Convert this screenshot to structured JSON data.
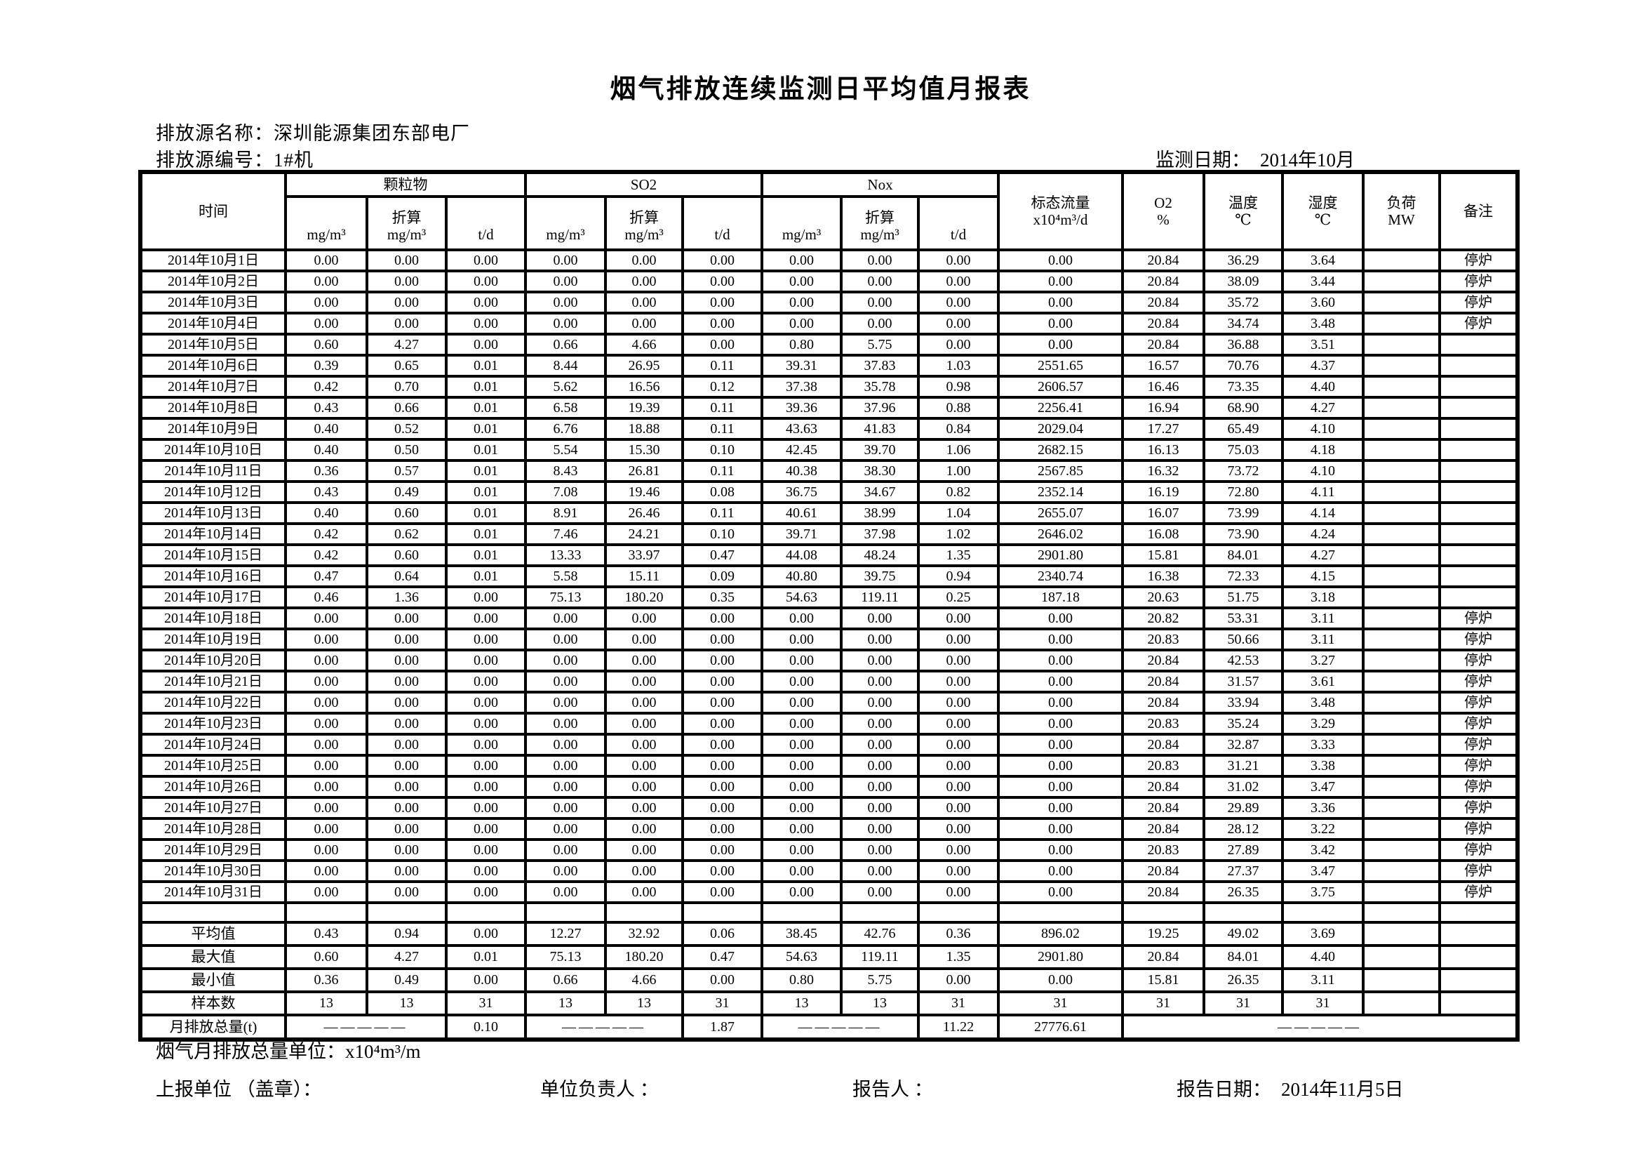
{
  "page": {
    "title": "烟气排放连续监测日平均值月报表",
    "source_name": "排放源名称：深圳能源集团东部电厂",
    "source_id": "排放源编号：1#机",
    "monitor_date_label": "监测日期：",
    "monitor_date_value": "2014年10月"
  },
  "table": {
    "headers": {
      "time": "时间",
      "groups": [
        {
          "label": "颗粒物",
          "units": [
            "mg/m³",
            "折算\nmg/m³",
            "t/d"
          ]
        },
        {
          "label": "SO2",
          "units": [
            "mg/m³",
            "折算\nmg/m³",
            "t/d"
          ]
        },
        {
          "label": "Nox",
          "units": [
            "mg/m³",
            "折算\nmg/m³",
            "t/d"
          ]
        }
      ],
      "flow": "标态流量\nx10⁴m³/d",
      "o2": "O2\n%",
      "temp": "温度\n℃",
      "humidity": "湿度\n℃",
      "load": "负荷\nMW",
      "remark": "备注"
    },
    "rows": [
      {
        "date": "2014年10月1日",
        "values": [
          "0.00",
          "0.00",
          "0.00",
          "0.00",
          "0.00",
          "0.00",
          "0.00",
          "0.00",
          "0.00",
          "0.00",
          "20.84",
          "36.29",
          "3.64"
        ],
        "load": "",
        "remark": "停炉"
      },
      {
        "date": "2014年10月2日",
        "values": [
          "0.00",
          "0.00",
          "0.00",
          "0.00",
          "0.00",
          "0.00",
          "0.00",
          "0.00",
          "0.00",
          "0.00",
          "20.84",
          "38.09",
          "3.44"
        ],
        "load": "",
        "remark": "停炉"
      },
      {
        "date": "2014年10月3日",
        "values": [
          "0.00",
          "0.00",
          "0.00",
          "0.00",
          "0.00",
          "0.00",
          "0.00",
          "0.00",
          "0.00",
          "0.00",
          "20.84",
          "35.72",
          "3.60"
        ],
        "load": "",
        "remark": "停炉"
      },
      {
        "date": "2014年10月4日",
        "values": [
          "0.00",
          "0.00",
          "0.00",
          "0.00",
          "0.00",
          "0.00",
          "0.00",
          "0.00",
          "0.00",
          "0.00",
          "20.84",
          "34.74",
          "3.48"
        ],
        "load": "",
        "remark": "停炉"
      },
      {
        "date": "2014年10月5日",
        "values": [
          "0.60",
          "4.27",
          "0.00",
          "0.66",
          "4.66",
          "0.00",
          "0.80",
          "5.75",
          "0.00",
          "0.00",
          "20.84",
          "36.88",
          "3.51"
        ],
        "load": "",
        "remark": ""
      },
      {
        "date": "2014年10月6日",
        "values": [
          "0.39",
          "0.65",
          "0.01",
          "8.44",
          "26.95",
          "0.11",
          "39.31",
          "37.83",
          "1.03",
          "2551.65",
          "16.57",
          "70.76",
          "4.37"
        ],
        "load": "",
        "remark": ""
      },
      {
        "date": "2014年10月7日",
        "values": [
          "0.42",
          "0.70",
          "0.01",
          "5.62",
          "16.56",
          "0.12",
          "37.38",
          "35.78",
          "0.98",
          "2606.57",
          "16.46",
          "73.35",
          "4.40"
        ],
        "load": "",
        "remark": ""
      },
      {
        "date": "2014年10月8日",
        "values": [
          "0.43",
          "0.66",
          "0.01",
          "6.58",
          "19.39",
          "0.11",
          "39.36",
          "37.96",
          "0.88",
          "2256.41",
          "16.94",
          "68.90",
          "4.27"
        ],
        "load": "",
        "remark": ""
      },
      {
        "date": "2014年10月9日",
        "values": [
          "0.40",
          "0.52",
          "0.01",
          "6.76",
          "18.88",
          "0.11",
          "43.63",
          "41.83",
          "0.84",
          "2029.04",
          "17.27",
          "65.49",
          "4.10"
        ],
        "load": "",
        "remark": ""
      },
      {
        "date": "2014年10月10日",
        "values": [
          "0.40",
          "0.50",
          "0.01",
          "5.54",
          "15.30",
          "0.10",
          "42.45",
          "39.70",
          "1.06",
          "2682.15",
          "16.13",
          "75.03",
          "4.18"
        ],
        "load": "",
        "remark": ""
      },
      {
        "date": "2014年10月11日",
        "values": [
          "0.36",
          "0.57",
          "0.01",
          "8.43",
          "26.81",
          "0.11",
          "40.38",
          "38.30",
          "1.00",
          "2567.85",
          "16.32",
          "73.72",
          "4.10"
        ],
        "load": "",
        "remark": ""
      },
      {
        "date": "2014年10月12日",
        "values": [
          "0.43",
          "0.49",
          "0.01",
          "7.08",
          "19.46",
          "0.08",
          "36.75",
          "34.67",
          "0.82",
          "2352.14",
          "16.19",
          "72.80",
          "4.11"
        ],
        "load": "",
        "remark": ""
      },
      {
        "date": "2014年10月13日",
        "values": [
          "0.40",
          "0.60",
          "0.01",
          "8.91",
          "26.46",
          "0.11",
          "40.61",
          "38.99",
          "1.04",
          "2655.07",
          "16.07",
          "73.99",
          "4.14"
        ],
        "load": "",
        "remark": ""
      },
      {
        "date": "2014年10月14日",
        "values": [
          "0.42",
          "0.62",
          "0.01",
          "7.46",
          "24.21",
          "0.10",
          "39.71",
          "37.98",
          "1.02",
          "2646.02",
          "16.08",
          "73.90",
          "4.24"
        ],
        "load": "",
        "remark": ""
      },
      {
        "date": "2014年10月15日",
        "values": [
          "0.42",
          "0.60",
          "0.01",
          "13.33",
          "33.97",
          "0.47",
          "44.08",
          "48.24",
          "1.35",
          "2901.80",
          "15.81",
          "84.01",
          "4.27"
        ],
        "load": "",
        "remark": ""
      },
      {
        "date": "2014年10月16日",
        "values": [
          "0.47",
          "0.64",
          "0.01",
          "5.58",
          "15.11",
          "0.09",
          "40.80",
          "39.75",
          "0.94",
          "2340.74",
          "16.38",
          "72.33",
          "4.15"
        ],
        "load": "",
        "remark": ""
      },
      {
        "date": "2014年10月17日",
        "values": [
          "0.46",
          "1.36",
          "0.00",
          "75.13",
          "180.20",
          "0.35",
          "54.63",
          "119.11",
          "0.25",
          "187.18",
          "20.63",
          "51.75",
          "3.18"
        ],
        "load": "",
        "remark": ""
      },
      {
        "date": "2014年10月18日",
        "values": [
          "0.00",
          "0.00",
          "0.00",
          "0.00",
          "0.00",
          "0.00",
          "0.00",
          "0.00",
          "0.00",
          "0.00",
          "20.82",
          "53.31",
          "3.11"
        ],
        "load": "",
        "remark": "停炉"
      },
      {
        "date": "2014年10月19日",
        "values": [
          "0.00",
          "0.00",
          "0.00",
          "0.00",
          "0.00",
          "0.00",
          "0.00",
          "0.00",
          "0.00",
          "0.00",
          "20.83",
          "50.66",
          "3.11"
        ],
        "load": "",
        "remark": "停炉"
      },
      {
        "date": "2014年10月20日",
        "values": [
          "0.00",
          "0.00",
          "0.00",
          "0.00",
          "0.00",
          "0.00",
          "0.00",
          "0.00",
          "0.00",
          "0.00",
          "20.84",
          "42.53",
          "3.27"
        ],
        "load": "",
        "remark": "停炉"
      },
      {
        "date": "2014年10月21日",
        "values": [
          "0.00",
          "0.00",
          "0.00",
          "0.00",
          "0.00",
          "0.00",
          "0.00",
          "0.00",
          "0.00",
          "0.00",
          "20.84",
          "31.57",
          "3.61"
        ],
        "load": "",
        "remark": "停炉"
      },
      {
        "date": "2014年10月22日",
        "values": [
          "0.00",
          "0.00",
          "0.00",
          "0.00",
          "0.00",
          "0.00",
          "0.00",
          "0.00",
          "0.00",
          "0.00",
          "20.84",
          "33.94",
          "3.48"
        ],
        "load": "",
        "remark": "停炉"
      },
      {
        "date": "2014年10月23日",
        "values": [
          "0.00",
          "0.00",
          "0.00",
          "0.00",
          "0.00",
          "0.00",
          "0.00",
          "0.00",
          "0.00",
          "0.00",
          "20.83",
          "35.24",
          "3.29"
        ],
        "load": "",
        "remark": "停炉"
      },
      {
        "date": "2014年10月24日",
        "values": [
          "0.00",
          "0.00",
          "0.00",
          "0.00",
          "0.00",
          "0.00",
          "0.00",
          "0.00",
          "0.00",
          "0.00",
          "20.84",
          "32.87",
          "3.33"
        ],
        "load": "",
        "remark": "停炉"
      },
      {
        "date": "2014年10月25日",
        "values": [
          "0.00",
          "0.00",
          "0.00",
          "0.00",
          "0.00",
          "0.00",
          "0.00",
          "0.00",
          "0.00",
          "0.00",
          "20.83",
          "31.21",
          "3.38"
        ],
        "load": "",
        "remark": "停炉"
      },
      {
        "date": "2014年10月26日",
        "values": [
          "0.00",
          "0.00",
          "0.00",
          "0.00",
          "0.00",
          "0.00",
          "0.00",
          "0.00",
          "0.00",
          "0.00",
          "20.84",
          "31.02",
          "3.47"
        ],
        "load": "",
        "remark": "停炉"
      },
      {
        "date": "2014年10月27日",
        "values": [
          "0.00",
          "0.00",
          "0.00",
          "0.00",
          "0.00",
          "0.00",
          "0.00",
          "0.00",
          "0.00",
          "0.00",
          "20.84",
          "29.89",
          "3.36"
        ],
        "load": "",
        "remark": "停炉"
      },
      {
        "date": "2014年10月28日",
        "values": [
          "0.00",
          "0.00",
          "0.00",
          "0.00",
          "0.00",
          "0.00",
          "0.00",
          "0.00",
          "0.00",
          "0.00",
          "20.84",
          "28.12",
          "3.22"
        ],
        "load": "",
        "remark": "停炉"
      },
      {
        "date": "2014年10月29日",
        "values": [
          "0.00",
          "0.00",
          "0.00",
          "0.00",
          "0.00",
          "0.00",
          "0.00",
          "0.00",
          "0.00",
          "0.00",
          "20.83",
          "27.89",
          "3.42"
        ],
        "load": "",
        "remark": "停炉"
      },
      {
        "date": "2014年10月30日",
        "values": [
          "0.00",
          "0.00",
          "0.00",
          "0.00",
          "0.00",
          "0.00",
          "0.00",
          "0.00",
          "0.00",
          "0.00",
          "20.84",
          "27.37",
          "3.47"
        ],
        "load": "",
        "remark": "停炉"
      },
      {
        "date": "2014年10月31日",
        "values": [
          "0.00",
          "0.00",
          "0.00",
          "0.00",
          "0.00",
          "0.00",
          "0.00",
          "0.00",
          "0.00",
          "0.00",
          "20.84",
          "26.35",
          "3.75"
        ],
        "load": "",
        "remark": "停炉"
      }
    ],
    "summary": [
      {
        "label": "平均值",
        "values": [
          "0.43",
          "0.94",
          "0.00",
          "12.27",
          "32.92",
          "0.06",
          "38.45",
          "42.76",
          "0.36",
          "896.02",
          "19.25",
          "49.02",
          "3.69"
        ],
        "load": "",
        "remark": ""
      },
      {
        "label": "最大值",
        "values": [
          "0.60",
          "4.27",
          "0.01",
          "75.13",
          "180.20",
          "0.47",
          "54.63",
          "119.11",
          "1.35",
          "2901.80",
          "20.84",
          "84.01",
          "4.40"
        ],
        "load": "",
        "remark": ""
      },
      {
        "label": "最小值",
        "values": [
          "0.36",
          "0.49",
          "0.00",
          "0.66",
          "4.66",
          "0.00",
          "0.80",
          "5.75",
          "0.00",
          "0.00",
          "15.81",
          "26.35",
          "3.11"
        ],
        "load": "",
        "remark": ""
      },
      {
        "label": "样本数",
        "values": [
          "13",
          "13",
          "31",
          "13",
          "13",
          "31",
          "13",
          "13",
          "31",
          "31",
          "31",
          "31",
          "31"
        ],
        "load": "",
        "remark": ""
      }
    ],
    "total_row": {
      "label": "月排放总量(t)",
      "dash": "—————",
      "pm_td": "0.10",
      "so2_td": "1.87",
      "nox_td": "11.22",
      "flow": "27776.61"
    }
  },
  "footer": {
    "unit_note": "烟气月排放总量单位：x10⁴m³/m",
    "report_unit": "上报单位 （盖章）：",
    "unit_head": "单位负责人 ：",
    "reporter": "报告人 ：",
    "report_date_label": "报告日期：",
    "report_date_value": "2014年11月5日"
  }
}
